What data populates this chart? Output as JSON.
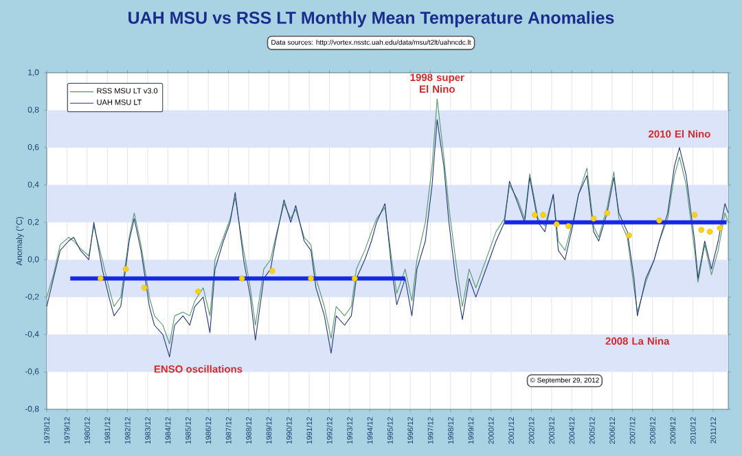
{
  "chart_data": {
    "type": "line",
    "title": "UAH MSU vs RSS LT Monthly Mean Temperature Anomalies",
    "ylabel": "Anomaly (°C)",
    "annotations": [
      {
        "text": "1998 super El Nino",
        "x": "1998-04",
        "y": 0.86
      },
      {
        "text": "2010 El Nino",
        "x": "2010-04",
        "y": 0.62
      },
      {
        "text": "2008 La Nina",
        "x": "2008-03",
        "y": -0.3
      },
      "ENSO oscillations",
      "Data sources: http://vortex.nsstc.uah.edu/data/msu/t2lt/uahncdc.lt",
      "© September 29, 2012"
    ],
    "x": [
      "1978-12",
      "1979-04",
      "1979-08",
      "1980-01",
      "1980-04",
      "1980-08",
      "1981-01",
      "1981-04",
      "1981-09",
      "1982-01",
      "1982-04",
      "1982-08",
      "1983-01",
      "1983-04",
      "1983-08",
      "1984-01",
      "1984-04",
      "1984-09",
      "1985-01",
      "1985-04",
      "1985-09",
      "1986-01",
      "1986-04",
      "1986-09",
      "1987-01",
      "1987-04",
      "1987-09",
      "1988-01",
      "1988-04",
      "1988-09",
      "1989-01",
      "1989-04",
      "1989-09",
      "1990-01",
      "1990-04",
      "1990-09",
      "1991-01",
      "1991-04",
      "1991-09",
      "1992-01",
      "1992-04",
      "1992-09",
      "1993-01",
      "1993-04",
      "1993-09",
      "1994-01",
      "1994-04",
      "1994-09",
      "1995-01",
      "1995-04",
      "1995-09",
      "1996-01",
      "1996-04",
      "1996-09",
      "1997-01",
      "1997-04",
      "1997-09",
      "1998-01",
      "1998-04",
      "1998-08",
      "1998-11",
      "1999-03",
      "1999-07",
      "1999-11",
      "2000-03",
      "2000-07",
      "2000-11",
      "2001-03",
      "2001-08",
      "2001-11",
      "2002-04",
      "2002-08",
      "2002-11",
      "2003-04",
      "2003-08",
      "2004-01",
      "2004-04",
      "2004-08",
      "2005-01",
      "2005-04",
      "2005-09",
      "2006-01",
      "2006-04",
      "2006-09",
      "2007-01",
      "2007-04",
      "2007-09",
      "2008-01",
      "2008-03",
      "2008-08",
      "2009-01",
      "2009-04",
      "2009-09",
      "2010-01",
      "2010-04",
      "2010-08",
      "2011-01",
      "2011-03",
      "2011-07",
      "2011-11",
      "2012-03",
      "2012-07",
      "2012-09"
    ],
    "series": [
      {
        "name": "RSS MSU LT v3.0",
        "color": "#4f9a66",
        "values": [
          -0.2,
          -0.08,
          0.08,
          0.12,
          0.1,
          0.06,
          0.02,
          0.18,
          0.0,
          -0.15,
          -0.25,
          -0.2,
          0.12,
          0.25,
          0.08,
          -0.2,
          -0.3,
          -0.35,
          -0.45,
          -0.3,
          -0.28,
          -0.3,
          -0.22,
          -0.15,
          -0.3,
          0.0,
          0.12,
          0.22,
          0.33,
          0.05,
          -0.15,
          -0.35,
          -0.05,
          0.0,
          0.12,
          0.3,
          0.22,
          0.27,
          0.12,
          0.08,
          -0.1,
          -0.25,
          -0.42,
          -0.25,
          -0.3,
          -0.25,
          -0.05,
          0.05,
          0.15,
          0.22,
          0.28,
          0.0,
          -0.18,
          -0.05,
          -0.22,
          0.0,
          0.2,
          0.5,
          0.86,
          0.55,
          0.28,
          0.0,
          -0.25,
          -0.05,
          -0.15,
          -0.05,
          0.05,
          0.15,
          0.22,
          0.4,
          0.32,
          0.22,
          0.46,
          0.22,
          0.18,
          0.35,
          0.1,
          0.05,
          0.22,
          0.35,
          0.49,
          0.18,
          0.12,
          0.28,
          0.47,
          0.22,
          0.12,
          -0.15,
          -0.28,
          -0.12,
          0.0,
          0.1,
          0.22,
          0.45,
          0.55,
          0.4,
          0.05,
          -0.12,
          0.08,
          -0.08,
          0.05,
          0.25,
          0.2
        ]
      },
      {
        "name": "UAH MSU LT",
        "color": "#26367a",
        "values": [
          -0.25,
          -0.1,
          0.05,
          0.1,
          0.12,
          0.05,
          0.0,
          0.2,
          -0.05,
          -0.2,
          -0.3,
          -0.25,
          0.1,
          0.22,
          0.05,
          -0.25,
          -0.35,
          -0.4,
          -0.52,
          -0.35,
          -0.3,
          -0.35,
          -0.25,
          -0.2,
          -0.39,
          -0.05,
          0.1,
          0.2,
          0.36,
          0.0,
          -0.2,
          -0.43,
          -0.1,
          -0.05,
          0.1,
          0.32,
          0.2,
          0.29,
          0.1,
          0.05,
          -0.15,
          -0.3,
          -0.5,
          -0.3,
          -0.35,
          -0.3,
          -0.1,
          0.0,
          0.1,
          0.2,
          0.3,
          -0.05,
          -0.24,
          -0.1,
          -0.3,
          -0.05,
          0.1,
          0.4,
          0.75,
          0.5,
          0.2,
          -0.1,
          -0.32,
          -0.1,
          -0.2,
          -0.1,
          0.0,
          0.1,
          0.2,
          0.42,
          0.3,
          0.2,
          0.44,
          0.2,
          0.15,
          0.35,
          0.05,
          0.0,
          0.2,
          0.35,
          0.45,
          0.15,
          0.1,
          0.25,
          0.44,
          0.25,
          0.15,
          -0.1,
          -0.3,
          -0.1,
          0.0,
          0.1,
          0.25,
          0.5,
          0.6,
          0.45,
          0.1,
          -0.1,
          0.1,
          -0.05,
          0.1,
          0.3,
          0.25
        ]
      },
      {
        "type": "line",
        "color": "#1428e6",
        "x": [
          "1980-02",
          "1996-09"
        ],
        "values": [
          -0.1,
          -0.1
        ]
      },
      {
        "type": "line",
        "color": "#1428e6",
        "x": [
          "2001-08",
          "2012-08"
        ],
        "values": [
          0.2,
          0.2
        ]
      },
      {
        "type": "scatter",
        "marker": "circle",
        "color": "#f7d21c",
        "x": [
          "1981-08",
          "1982-11",
          "1983-10",
          "1986-06",
          "1988-08",
          "1990-02",
          "1992-01",
          "1994-03",
          "2003-02",
          "2003-07",
          "2004-03",
          "2004-10",
          "2006-01",
          "2006-09",
          "2007-10",
          "2009-04",
          "2011-01",
          "2011-05",
          "2011-10",
          "2012-04"
        ],
        "values": [
          -0.1,
          -0.05,
          -0.15,
          -0.17,
          -0.1,
          -0.06,
          -0.1,
          -0.1,
          0.24,
          0.24,
          0.19,
          0.18,
          0.22,
          0.25,
          0.13,
          0.21,
          0.24,
          0.16,
          0.15,
          0.17
        ]
      }
    ],
    "xlim": [
      "1978-12",
      "2012-09"
    ],
    "ylim": [
      -0.8,
      1.0
    ],
    "xticks": [
      {
        "value": "1978-12",
        "label": "1978/12"
      },
      {
        "value": "1979-12",
        "label": "1979/12"
      },
      {
        "value": "1980-12",
        "label": "1980/12"
      },
      {
        "value": "1981-12",
        "label": "1981/12"
      },
      {
        "value": "1982-12",
        "label": "1982/12"
      },
      {
        "value": "1983-12",
        "label": "1983/12"
      },
      {
        "value": "1984-12",
        "label": "1984/12"
      },
      {
        "value": "1985-12",
        "label": "1985/12"
      },
      {
        "value": "1986-12",
        "label": "1986/12"
      },
      {
        "value": "1987-12",
        "label": "1987/12"
      },
      {
        "value": "1988-12",
        "label": "1988/12"
      },
      {
        "value": "1989-12",
        "label": "1989/12"
      },
      {
        "value": "1990-12",
        "label": "1990/12"
      },
      {
        "value": "1991-12",
        "label": "1991/12"
      },
      {
        "value": "1992-12",
        "label": "1992/12"
      },
      {
        "value": "1993-12",
        "label": "1993/12"
      },
      {
        "value": "1994-12",
        "label": "1994/12"
      },
      {
        "value": "1995-12",
        "label": "1995/12"
      },
      {
        "value": "1996-12",
        "label": "1996/12"
      },
      {
        "value": "1997-12",
        "label": "1997/12"
      },
      {
        "value": "1998-12",
        "label": "1998/12"
      },
      {
        "value": "1999-12",
        "label": "1999/12"
      },
      {
        "value": "2000-12",
        "label": "2000/12"
      },
      {
        "value": "2001-12",
        "label": "2001/12"
      },
      {
        "value": "2002-12",
        "label": "2002/12"
      },
      {
        "value": "2003-12",
        "label": "2003/12"
      },
      {
        "value": "2004-12",
        "label": "2004/12"
      },
      {
        "value": "2005-12",
        "label": "2005/12"
      },
      {
        "value": "2006-12",
        "label": "2006/12"
      },
      {
        "value": "2007-12",
        "label": "2007/12"
      },
      {
        "value": "2008-12",
        "label": "2008/12"
      },
      {
        "value": "2009-12",
        "label": "2009/12"
      },
      {
        "value": "2010-12",
        "label": "2010/12"
      },
      {
        "value": "2011-12",
        "label": "2011/12"
      }
    ],
    "yticks": [
      {
        "value": -0.8,
        "label": "-0,8"
      },
      {
        "value": -0.6,
        "label": "-0,6"
      },
      {
        "value": -0.4,
        "label": "-0,4"
      },
      {
        "value": -0.2,
        "label": "-0,2"
      },
      {
        "value": 0.0,
        "label": "0,0"
      },
      {
        "value": 0.2,
        "label": "0,2"
      },
      {
        "value": 0.4,
        "label": "0,4"
      },
      {
        "value": 0.6,
        "label": "0,6"
      },
      {
        "value": 0.8,
        "label": "0,8"
      },
      {
        "value": 1.0,
        "label": "1,0"
      }
    ],
    "bands": [
      {
        "axis": "y",
        "from": -0.6,
        "to": -0.4,
        "color": "#dbe4f8"
      },
      {
        "axis": "y",
        "from": -0.2,
        "to": 0.0,
        "color": "#dbe4f8"
      },
      {
        "axis": "y",
        "from": 0.2,
        "to": 0.4,
        "color": "#dbe4f8"
      },
      {
        "axis": "y",
        "from": 0.6,
        "to": 0.8,
        "color": "#dbe4f8"
      }
    ],
    "grid": "x",
    "legend": "top left",
    "marker": "none",
    "line_style": "solid"
  }
}
